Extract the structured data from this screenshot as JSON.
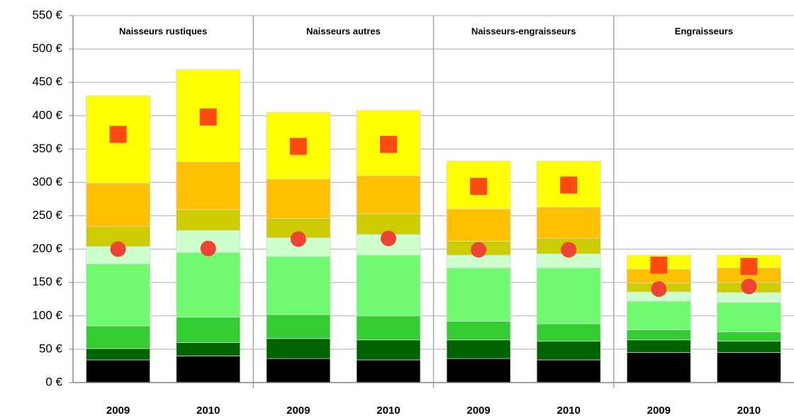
{
  "chart_data": {
    "type": "stacked_bar",
    "groups": [
      "Naisseurs rustiques",
      "Naisseurs autres",
      "Naisseurs-engraisseurs",
      "Engraisseurs"
    ],
    "categories": [
      "2009",
      "2010",
      "2009",
      "2010",
      "2009",
      "2010",
      "2009",
      "2010"
    ],
    "series": [
      {
        "color": "#000000",
        "values": [
          34,
          40,
          36,
          34,
          36,
          34,
          45,
          45
        ]
      },
      {
        "color": "#006400",
        "values": [
          17,
          20,
          30,
          30,
          28,
          28,
          19,
          17
        ]
      },
      {
        "color": "#33cc33",
        "values": [
          34,
          38,
          36,
          36,
          28,
          26,
          15,
          14
        ]
      },
      {
        "color": "#70fa70",
        "values": [
          93,
          97,
          87,
          91,
          80,
          84,
          43,
          44
        ]
      },
      {
        "color": "#ccffcc",
        "values": [
          26,
          33,
          28,
          31,
          19,
          21,
          14,
          15
        ]
      },
      {
        "color": "#cccc00",
        "values": [
          30,
          31,
          29,
          31,
          21,
          23,
          13,
          15
        ]
      },
      {
        "color": "#ffc000",
        "values": [
          65,
          72,
          59,
          57,
          48,
          47,
          21,
          22
        ]
      },
      {
        "color": "#ffff00",
        "values": [
          131,
          138,
          100,
          98,
          72,
          69,
          21,
          19
        ]
      }
    ],
    "markers": [
      {
        "shape": "circle",
        "color": "#ee4433",
        "values": [
          200,
          201,
          215,
          216,
          199,
          199,
          140,
          144
        ]
      },
      {
        "shape": "square",
        "color": "#ff4a12",
        "values": [
          372,
          398,
          354,
          357,
          294,
          296,
          176,
          174
        ]
      }
    ],
    "ylim": [
      0,
      550
    ],
    "yticks": [
      {
        "value": 0,
        "label": "0 €"
      },
      {
        "value": 50,
        "label": "50 €"
      },
      {
        "value": 100,
        "label": "100 €"
      },
      {
        "value": 150,
        "label": "150 €"
      },
      {
        "value": 200,
        "label": "200 €"
      },
      {
        "value": 250,
        "label": "250 €"
      },
      {
        "value": 300,
        "label": "300 €"
      },
      {
        "value": 350,
        "label": "350 €"
      },
      {
        "value": 400,
        "label": "400 €"
      },
      {
        "value": 450,
        "label": "450 €"
      },
      {
        "value": 500,
        "label": "500 €"
      },
      {
        "value": 550,
        "label": "550 €"
      }
    ],
    "grid": true
  }
}
